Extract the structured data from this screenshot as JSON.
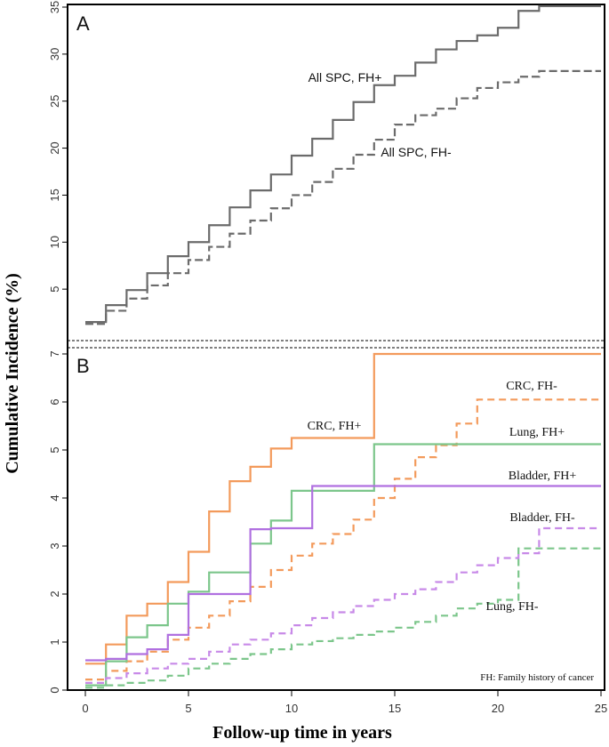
{
  "figure": {
    "xlabel": "Follow-up time in years",
    "ylabel": "Cumulative Incidence (%)",
    "footnote": "FH: Family history of cancer"
  },
  "chart_data": [
    {
      "panel": "A",
      "type": "line",
      "step": true,
      "title": "",
      "xlabel": "Follow-up time in years",
      "ylabel": "Cumulative Incidence (%)",
      "xlim": [
        0,
        25
      ],
      "ylim": [
        0,
        35
      ],
      "x_ticks": [
        0,
        5,
        10,
        15,
        20,
        25
      ],
      "y_ticks": [
        5,
        10,
        15,
        20,
        25,
        30,
        35
      ],
      "series": [
        {
          "name": "All SPC, FH+",
          "color": "#6b6b6b",
          "dash": "solid",
          "x": [
            0,
            1,
            2,
            3,
            4,
            5,
            6,
            7,
            8,
            9,
            10,
            11,
            12,
            13,
            14,
            15,
            16,
            17,
            18,
            19,
            20,
            21,
            22,
            25
          ],
          "values": [
            1.5,
            3.3,
            4.9,
            6.7,
            8.5,
            10.0,
            11.8,
            13.7,
            15.5,
            17.2,
            19.2,
            21.0,
            23.0,
            24.9,
            26.7,
            27.7,
            29.1,
            30.5,
            31.4,
            32.0,
            32.8,
            34.6,
            35.1,
            35.1
          ]
        },
        {
          "name": "All SPC, FH-",
          "color": "#6b6b6b",
          "dash": "dashed",
          "x": [
            0,
            1,
            2,
            3,
            4,
            5,
            6,
            7,
            8,
            9,
            10,
            11,
            12,
            13,
            14,
            15,
            16,
            17,
            18,
            19,
            20,
            21,
            22,
            25
          ],
          "values": [
            1.3,
            2.7,
            4.0,
            5.4,
            6.7,
            8.1,
            9.5,
            10.9,
            12.3,
            13.6,
            15.0,
            16.4,
            17.8,
            19.3,
            20.9,
            22.5,
            23.5,
            24.2,
            25.3,
            26.4,
            27.0,
            27.6,
            28.2,
            28.2
          ]
        }
      ]
    },
    {
      "panel": "B",
      "type": "line",
      "step": true,
      "title": "",
      "xlabel": "Follow-up time in years",
      "ylabel": "Cumulative Incidence (%)",
      "xlim": [
        0,
        25
      ],
      "ylim": [
        0,
        7.0
      ],
      "x_ticks": [
        0,
        5,
        10,
        15,
        20,
        25
      ],
      "y_ticks": [
        0,
        1,
        2,
        3,
        4,
        5,
        6,
        7.0
      ],
      "series": [
        {
          "name": "CRC, FH+",
          "color": "#f39a5b",
          "dash": "solid",
          "x": [
            0,
            1,
            2,
            3,
            4,
            5,
            6,
            7,
            8,
            9,
            10,
            14,
            25
          ],
          "values": [
            0.55,
            0.95,
            1.55,
            1.8,
            2.25,
            2.88,
            3.72,
            4.35,
            4.65,
            5.03,
            5.25,
            7.0,
            7.0
          ]
        },
        {
          "name": "CRC, FH-",
          "color": "#f39a5b",
          "dash": "dashed",
          "x": [
            0,
            1,
            2,
            3,
            4,
            5,
            6,
            7,
            8,
            9,
            10,
            11,
            12,
            13,
            14,
            15,
            16,
            17,
            18,
            19,
            25
          ],
          "values": [
            0.22,
            0.4,
            0.6,
            0.8,
            1.05,
            1.3,
            1.55,
            1.85,
            2.15,
            2.5,
            2.8,
            3.05,
            3.25,
            3.55,
            4.0,
            4.4,
            4.85,
            5.1,
            5.55,
            6.05,
            6.05
          ]
        },
        {
          "name": "Lung, FH+",
          "color": "#7cc68b",
          "dash": "solid",
          "x": [
            0,
            1,
            2,
            3,
            4,
            5,
            6,
            8,
            9,
            10,
            14,
            25
          ],
          "values": [
            0.1,
            0.6,
            1.1,
            1.35,
            1.8,
            2.05,
            2.45,
            3.05,
            3.53,
            4.15,
            5.12,
            5.12
          ]
        },
        {
          "name": "Lung, FH-",
          "color": "#7cc68b",
          "dash": "dashed",
          "x": [
            0,
            1,
            2,
            3,
            4,
            5,
            6,
            7,
            8,
            9,
            10,
            11,
            12,
            13,
            14,
            15,
            16,
            17,
            18,
            19,
            20,
            21,
            22,
            25
          ],
          "values": [
            0.05,
            0.1,
            0.15,
            0.2,
            0.3,
            0.45,
            0.55,
            0.65,
            0.75,
            0.85,
            0.95,
            1.02,
            1.08,
            1.15,
            1.22,
            1.3,
            1.42,
            1.55,
            1.7,
            1.8,
            1.88,
            2.95,
            2.95,
            2.95
          ]
        },
        {
          "name": "Bladder, FH+",
          "color": "#b070e0",
          "dash": "solid",
          "x": [
            0,
            1,
            2,
            3,
            4,
            5,
            8,
            9,
            11,
            25
          ],
          "values": [
            0.62,
            0.65,
            0.75,
            0.85,
            1.15,
            2.0,
            3.35,
            3.37,
            4.25,
            4.25
          ]
        },
        {
          "name": "Bladder, FH-",
          "color": "#c88ae8",
          "dash": "dashed",
          "x": [
            0,
            1,
            2,
            3,
            4,
            5,
            6,
            7,
            8,
            9,
            10,
            11,
            12,
            13,
            14,
            15,
            16,
            17,
            18,
            19,
            20,
            21,
            22,
            25
          ],
          "values": [
            0.15,
            0.25,
            0.35,
            0.45,
            0.55,
            0.65,
            0.8,
            0.95,
            1.05,
            1.18,
            1.35,
            1.5,
            1.62,
            1.75,
            1.88,
            2.0,
            2.1,
            2.25,
            2.45,
            2.6,
            2.75,
            2.85,
            3.37,
            3.37
          ]
        }
      ]
    }
  ]
}
